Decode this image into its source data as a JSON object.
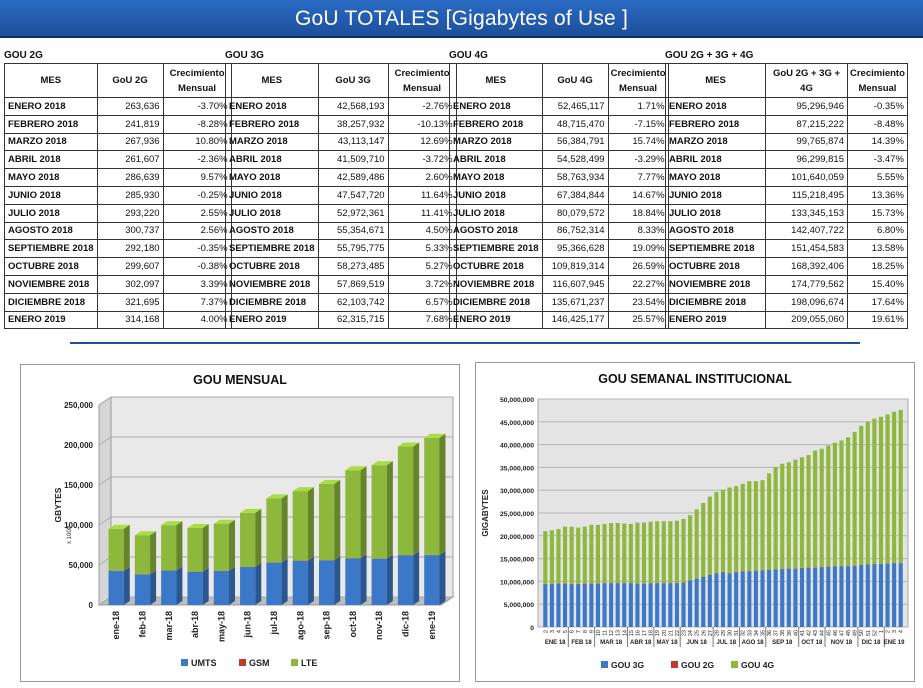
{
  "header": {
    "title": "GoU TOTALES  [Gigabytes of Use ]"
  },
  "tables": [
    {
      "title": "GOU 2G",
      "col_mes": "MES",
      "col_val": "GoU 2G",
      "col_growth": "Crecimiento Mensual",
      "rows": [
        [
          "ENERO 2018",
          "263,636",
          "-3.70%"
        ],
        [
          "FEBRERO 2018",
          "241,819",
          "-8.28%"
        ],
        [
          "MARZO 2018",
          "267,936",
          "10.80%"
        ],
        [
          "ABRIL 2018",
          "261,607",
          "-2.36%"
        ],
        [
          "MAYO 2018",
          "286,639",
          "9.57%"
        ],
        [
          "JUNIO 2018",
          "285,930",
          "-0.25%"
        ],
        [
          "JULIO 2018",
          "293,220",
          "2.55%"
        ],
        [
          "AGOSTO 2018",
          "300,737",
          "2.56%"
        ],
        [
          "SEPTIEMBRE 2018",
          "292,180",
          "-0.35%"
        ],
        [
          "OCTUBRE 2018",
          "299,607",
          "-0.38%"
        ],
        [
          "NOVIEMBRE 2018",
          "302,097",
          "3.39%"
        ],
        [
          "DICIEMBRE 2018",
          "321,695",
          "7.37%"
        ],
        [
          "ENERO 2019",
          "314,168",
          "4.00%"
        ]
      ]
    },
    {
      "title": "GOU 3G",
      "col_mes": "MES",
      "col_val": "GoU 3G",
      "col_growth": "Crecimiento Mensual",
      "rows": [
        [
          "ENERO 2018",
          "42,568,193",
          "-2.76%"
        ],
        [
          "FEBRERO 2018",
          "38,257,932",
          "-10.13%"
        ],
        [
          "MARZO 2018",
          "43,113,147",
          "12.69%"
        ],
        [
          "ABRIL 2018",
          "41,509,710",
          "-3.72%"
        ],
        [
          "MAYO 2018",
          "42,589,486",
          "2.60%"
        ],
        [
          "JUNIO 2018",
          "47,547,720",
          "11.64%"
        ],
        [
          "JULIO 2018",
          "52,972,361",
          "11.41%"
        ],
        [
          "AGOSTO 2018",
          "55,354,671",
          "4.50%"
        ],
        [
          "SEPTIEMBRE 2018",
          "55,795,775",
          "5.33%"
        ],
        [
          "OCTUBRE 2018",
          "58,273,485",
          "5.27%"
        ],
        [
          "NOVIEMBRE 2018",
          "57,869,519",
          "3.72%"
        ],
        [
          "DICIEMBRE 2018",
          "62,103,742",
          "6.57%"
        ],
        [
          "ENERO 2019",
          "62,315,715",
          "7.68%"
        ]
      ]
    },
    {
      "title": "GOU 4G",
      "col_mes": "MES",
      "col_val": "GoU 4G",
      "col_growth": "Crecimiento Mensual",
      "rows": [
        [
          "ENERO 2018",
          "52,465,117",
          "1.71%"
        ],
        [
          "FEBRERO 2018",
          "48,715,470",
          "-7.15%"
        ],
        [
          "MARZO 2018",
          "56,384,791",
          "15.74%"
        ],
        [
          "ABRIL 2018",
          "54,528,499",
          "-3.29%"
        ],
        [
          "MAYO 2018",
          "58,763,934",
          "7.77%"
        ],
        [
          "JUNIO 2018",
          "67,384,844",
          "14.67%"
        ],
        [
          "JULIO 2018",
          "80,079,572",
          "18.84%"
        ],
        [
          "AGOSTO 2018",
          "86,752,314",
          "8.33%"
        ],
        [
          "SEPTIEMBRE 2018",
          "95,366,628",
          "19.09%"
        ],
        [
          "OCTUBRE 2018",
          "109,819,314",
          "26.59%"
        ],
        [
          "NOVIEMBRE 2018",
          "116,607,945",
          "22.27%"
        ],
        [
          "DICIEMBRE 2018",
          "135,671,237",
          "23.54%"
        ],
        [
          "ENERO 2019",
          "146,425,177",
          "25.57%"
        ]
      ]
    },
    {
      "title": "GOU 2G + 3G + 4G",
      "col_mes": "MES",
      "col_val": "GoU 2G + 3G + 4G",
      "col_growth": "Crecimiento Mensual",
      "rows": [
        [
          "ENERO 2018",
          "95,296,946",
          "-0.35%"
        ],
        [
          "FEBRERO 2018",
          "87,215,222",
          "-8.48%"
        ],
        [
          "MARZO 2018",
          "99,765,874",
          "14.39%"
        ],
        [
          "ABRIL 2018",
          "96,299,815",
          "-3.47%"
        ],
        [
          "MAYO 2018",
          "101,640,059",
          "5.55%"
        ],
        [
          "JUNIO 2018",
          "115,218,495",
          "13.36%"
        ],
        [
          "JULIO 2018",
          "133,345,153",
          "15.73%"
        ],
        [
          "AGOSTO 2018",
          "142,407,722",
          "6.80%"
        ],
        [
          "SEPTIEMBRE 2018",
          "151,454,583",
          "13.58%"
        ],
        [
          "OCTUBRE 2018",
          "168,392,406",
          "18.25%"
        ],
        [
          "NOVIEMBRE 2018",
          "174,779,562",
          "15.40%"
        ],
        [
          "DICIEMBRE 2018",
          "198,096,674",
          "17.64%"
        ],
        [
          "ENERO 2019",
          "209,055,060",
          "19.61%"
        ]
      ]
    }
  ],
  "chart_data": [
    {
      "type": "bar",
      "stacked": true,
      "title": "GOU MENSUAL",
      "ylabel": "GBYTES",
      "ylabel_unit": "x 1000",
      "ylim": [
        0,
        250000
      ],
      "yticks": [
        "0",
        "50,000",
        "100,000",
        "150,000",
        "200,000",
        "250,000"
      ],
      "categories": [
        "ene-18",
        "feb-18",
        "mar-18",
        "abr-18",
        "may-18",
        "jun-18",
        "jul-18",
        "ago-18",
        "sep-18",
        "oct-18",
        "nov-18",
        "dic-18",
        "ene-19"
      ],
      "series": [
        {
          "name": "UMTS",
          "color": "#3c78c8",
          "values": [
            42568,
            38258,
            43113,
            41510,
            42589,
            47548,
            52972,
            55355,
            55796,
            58273,
            57870,
            62104,
            62316
          ]
        },
        {
          "name": "GSM",
          "color": "#c0392b",
          "values": [
            264,
            242,
            268,
            262,
            287,
            286,
            293,
            301,
            292,
            300,
            302,
            322,
            314
          ]
        },
        {
          "name": "LTE",
          "color": "#8db83c",
          "values": [
            52465,
            48715,
            56385,
            54528,
            58764,
            67385,
            80080,
            86752,
            95367,
            109819,
            116608,
            135671,
            146425
          ]
        }
      ],
      "legend": "bottom"
    },
    {
      "type": "bar",
      "stacked": true,
      "title": "GOU SEMANAL INSTITUCIONAL",
      "ylabel": "GIGABYTES",
      "ylim": [
        0,
        50000000
      ],
      "yticks": [
        "0",
        "5,000,000",
        "10,000,000",
        "15,000,000",
        "20,000,000",
        "25,000,000",
        "30,000,000",
        "35,000,000",
        "40,000,000",
        "45,000,000",
        "50,000,000"
      ],
      "weeks": [
        "2",
        "3",
        "4",
        "5",
        "6",
        "7",
        "8",
        "9",
        "10",
        "11",
        "12",
        "13",
        "14",
        "15",
        "16",
        "17",
        "18",
        "19",
        "20",
        "21",
        "22",
        "23",
        "24",
        "25",
        "26",
        "27",
        "28",
        "29",
        "30",
        "31",
        "32",
        "33",
        "34",
        "35",
        "36",
        "37",
        "38",
        "39",
        "40",
        "41",
        "42",
        "43",
        "44",
        "45",
        "46",
        "47",
        "48",
        "49",
        "50",
        "51",
        "52",
        "1",
        "2",
        "3",
        "4"
      ],
      "months": [
        "ENE 18",
        "FEB 18",
        "MAR 18",
        "ABR 18",
        "MAY 18",
        "JUN 18",
        "JUL 18",
        "AGO 18",
        "SEP 18",
        "OCT 18",
        "NOV 18",
        "DIC 18",
        "ENE 19"
      ],
      "series": [
        {
          "name": "GOU 3G",
          "color": "#3c78c8",
          "values": [
            9400000,
            9400000,
            9500000,
            9500000,
            9400000,
            9400000,
            9500000,
            9500000,
            9500000,
            9600000,
            9600000,
            9600000,
            9600000,
            9600000,
            9500000,
            9500000,
            9600000,
            9600000,
            9600000,
            9600000,
            9600000,
            9700000,
            10200000,
            10600000,
            11000000,
            11400000,
            11800000,
            12000000,
            11800000,
            12000000,
            12200000,
            12200000,
            12300000,
            12400000,
            12500000,
            12600000,
            12700000,
            12800000,
            12800000,
            12900000,
            13000000,
            13000000,
            13100000,
            13200000,
            13300000,
            13300000,
            13300000,
            13400000,
            13600000,
            13700000,
            13800000,
            13800000,
            13900000,
            14000000,
            14000000
          ]
        },
        {
          "name": "GOU 2G",
          "color": "#c0392b",
          "values": [
            60000,
            60000,
            60000,
            60000,
            60000,
            60000,
            60000,
            60000,
            60000,
            60000,
            60000,
            60000,
            60000,
            60000,
            60000,
            60000,
            60000,
            60000,
            60000,
            60000,
            60000,
            60000,
            60000,
            60000,
            60000,
            60000,
            60000,
            60000,
            60000,
            60000,
            60000,
            60000,
            60000,
            60000,
            60000,
            60000,
            60000,
            60000,
            60000,
            60000,
            60000,
            60000,
            60000,
            60000,
            60000,
            60000,
            60000,
            60000,
            60000,
            60000,
            60000,
            60000,
            60000,
            60000,
            60000
          ]
        },
        {
          "name": "GOU 4G",
          "color": "#8db83c",
          "values": [
            11540000,
            11740000,
            11940000,
            12440000,
            12540000,
            12340000,
            12440000,
            12840000,
            12840000,
            12940000,
            13140000,
            13140000,
            13040000,
            12940000,
            13340000,
            13340000,
            13440000,
            13540000,
            13540000,
            13540000,
            13640000,
            13940000,
            14240000,
            15140000,
            16140000,
            17140000,
            17740000,
            18040000,
            18740000,
            18840000,
            19140000,
            19740000,
            19640000,
            19740000,
            21140000,
            22440000,
            23040000,
            23240000,
            23840000,
            24240000,
            24640000,
            25640000,
            25940000,
            26540000,
            27040000,
            27540000,
            28240000,
            29340000,
            30440000,
            31240000,
            31840000,
            32240000,
            32640000,
            33140000,
            33540000
          ]
        }
      ],
      "legend": "bottom"
    }
  ]
}
